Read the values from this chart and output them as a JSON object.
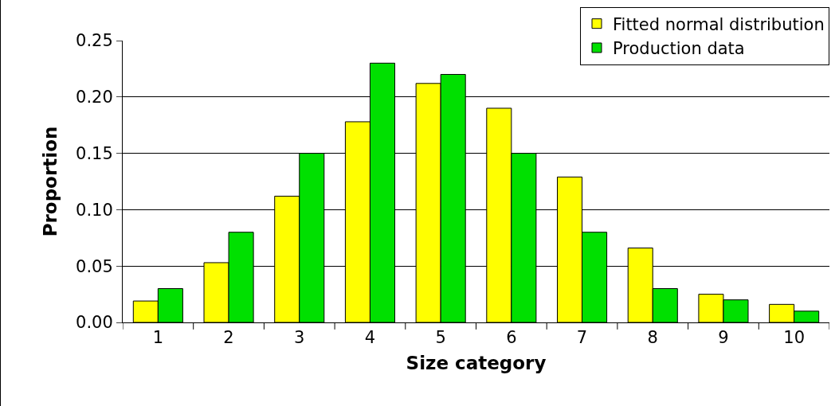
{
  "chart_data": {
    "type": "bar",
    "xlabel": "Size category",
    "ylabel": "Proportion",
    "categories": [
      "1",
      "2",
      "3",
      "4",
      "5",
      "6",
      "7",
      "8",
      "9",
      "10"
    ],
    "series": [
      {
        "name": "Fitted normal distribution",
        "color": "#ffff00",
        "values": [
          0.019,
          0.053,
          0.112,
          0.178,
          0.212,
          0.19,
          0.129,
          0.066,
          0.025,
          0.016
        ]
      },
      {
        "name": "Production data",
        "color": "#00e000",
        "values": [
          0.03,
          0.08,
          0.15,
          0.23,
          0.22,
          0.15,
          0.08,
          0.03,
          0.02,
          0.01
        ]
      }
    ],
    "ylim": [
      0,
      0.25
    ],
    "yticks": [
      {
        "value": 0,
        "label": "0.00"
      },
      {
        "value": 0.05,
        "label": "0.05"
      },
      {
        "value": 0.1,
        "label": "0.10"
      },
      {
        "value": 0.15,
        "label": "0.15"
      },
      {
        "value": 0.2,
        "label": "0.20"
      },
      {
        "value": 0.25,
        "label": "0.25"
      }
    ],
    "grid": "y",
    "legend": "top right"
  }
}
